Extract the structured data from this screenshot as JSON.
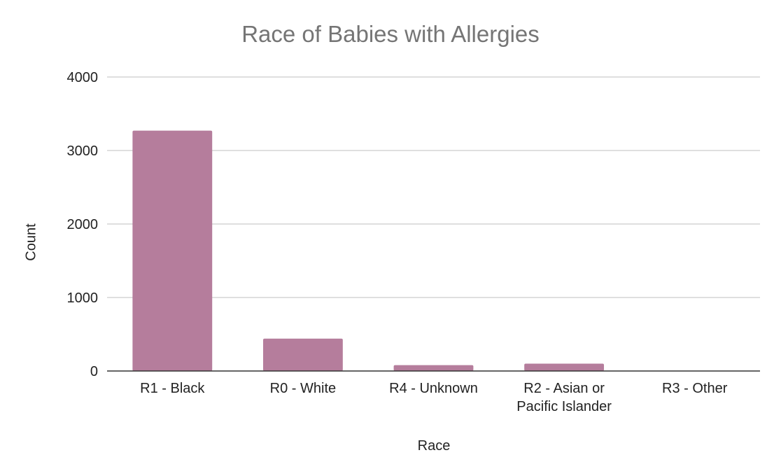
{
  "chart_data": {
    "type": "bar",
    "title": "Race of Babies with Allergies",
    "xlabel": "Race",
    "ylabel": "Count",
    "categories": [
      [
        "R1 - Black"
      ],
      [
        "R0 - White"
      ],
      [
        "R4 - Unknown"
      ],
      [
        "R2 - Asian or",
        "Pacific Islander"
      ],
      [
        "R3 - Other"
      ]
    ],
    "values": [
      3270,
      440,
      80,
      100,
      0
    ],
    "ylim": [
      0,
      4000
    ],
    "yticks": [
      0,
      1000,
      2000,
      3000,
      4000
    ],
    "grid": true,
    "legend": "none",
    "bar_color": "#b57d9c"
  }
}
